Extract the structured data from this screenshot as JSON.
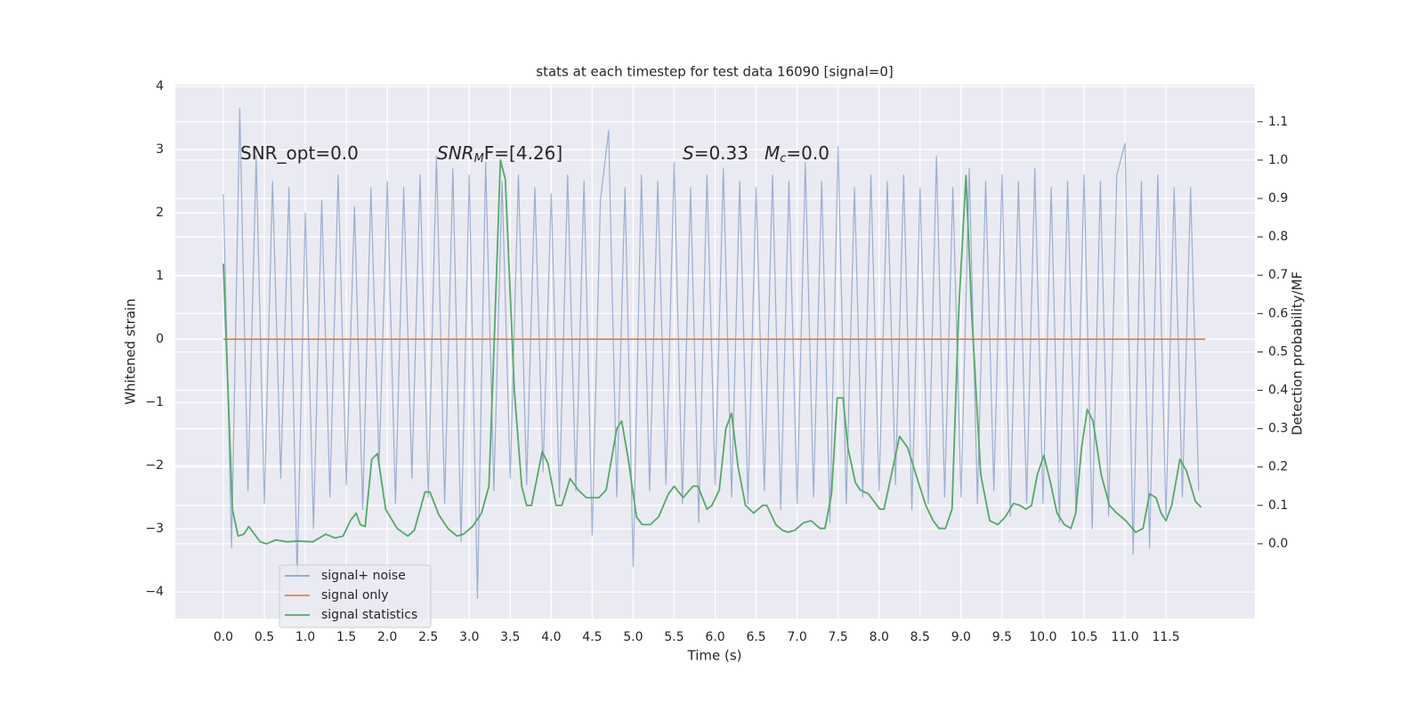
{
  "chart_data": {
    "type": "line",
    "title": "stats at each timestep for test data 16090 [signal=0]",
    "x_label": "Time (s)",
    "y_label": "Whitened strain",
    "y2_label": "Detection probability/MF",
    "annotations": [
      [
        "SNR_opt=0.0"
      ],
      [
        "SNR",
        "M",
        "F=[4.26]"
      ],
      [
        "S",
        "=0.33"
      ],
      [
        "M",
        "c",
        "=0.0"
      ]
    ],
    "xlim": [
      -0.586,
      12.585
    ],
    "ylim": [
      -4.42,
      4.03
    ],
    "y2lim": [
      -0.195,
      1.197
    ],
    "xticks": [
      {
        "value": 0,
        "label": "0.0"
      },
      0.5,
      {
        "value": 1,
        "label": "1.0"
      },
      1.5,
      {
        "value": 2,
        "label": "2.0"
      },
      2.5,
      {
        "value": 3,
        "label": "3.0"
      },
      3.5,
      {
        "value": 4,
        "label": "4.0"
      },
      4.5,
      {
        "value": 5,
        "label": "5.0"
      },
      5.5,
      {
        "value": 6,
        "label": "6.0"
      },
      6.5,
      {
        "value": 7,
        "label": "7.0"
      },
      7.5,
      {
        "value": 8,
        "label": "8.0"
      },
      8.5,
      {
        "value": 9,
        "label": "9.0"
      },
      9.5,
      {
        "value": 10,
        "label": "10.0"
      },
      10.5,
      {
        "value": 11,
        "label": "11.0"
      },
      11.5
    ],
    "yticks": [
      {
        "value": -4,
        "label": "−4"
      },
      {
        "value": -3,
        "label": "−3"
      },
      {
        "value": -2,
        "label": "−2"
      },
      {
        "value": -1,
        "label": "−1"
      },
      0,
      1,
      2,
      3,
      4
    ],
    "y2ticks": [
      {
        "value": 0,
        "label": "0.0"
      },
      0.1,
      0.2,
      0.3,
      0.4,
      0.5,
      0.6,
      0.7,
      0.8,
      0.9,
      {
        "value": 1,
        "label": "1.0"
      },
      1.1
    ],
    "grid": true,
    "legend": "lower left",
    "series": [
      {
        "name": "signal+ noise",
        "color": "#4c72b0",
        "x": [
          0,
          0.1,
          0.2,
          0.3,
          0.4,
          0.5,
          0.6,
          0.7,
          0.8,
          0.9,
          1,
          1.1,
          1.2,
          1.3,
          1.4,
          1.5,
          1.6,
          1.7,
          1.8,
          1.9,
          2,
          2.1,
          2.2,
          2.3,
          2.4,
          2.5,
          2.6,
          2.7,
          2.8,
          2.9,
          3,
          3.1,
          3.2,
          3.3,
          3.4,
          3.5,
          3.6,
          3.7,
          3.8,
          3.9,
          4,
          4.1,
          4.2,
          4.3,
          4.4,
          4.5,
          4.6,
          4.7,
          4.8,
          4.9,
          5,
          5.1,
          5.2,
          5.3,
          5.4,
          5.5,
          5.6,
          5.7,
          5.8,
          5.9,
          6,
          6.1,
          6.2,
          6.3,
          6.4,
          6.5,
          6.6,
          6.7,
          6.8,
          6.9,
          7,
          7.1,
          7.2,
          7.3,
          7.4,
          7.5,
          7.6,
          7.7,
          7.8,
          7.9,
          8,
          8.1,
          8.2,
          8.3,
          8.4,
          8.5,
          8.6,
          8.7,
          8.8,
          8.9,
          9,
          9.1,
          9.2,
          9.3,
          9.4,
          9.5,
          9.6,
          9.7,
          9.8,
          9.9,
          10,
          10.1,
          10.2,
          10.3,
          10.4,
          10.5,
          10.6,
          10.7,
          10.8,
          10.9,
          11,
          11.1,
          11.2,
          11.3,
          11.4,
          11.5,
          11.6,
          11.7,
          11.8,
          11.9
        ],
        "values": [
          2.3,
          -3.3,
          3.65,
          -2.4,
          2.9,
          -2.6,
          2.5,
          -2.2,
          2.4,
          -3.75,
          2.0,
          -3.0,
          2.2,
          -2.5,
          2.6,
          -2.3,
          2.1,
          -2.7,
          2.4,
          -2.0,
          2.5,
          -2.6,
          2.4,
          -2.2,
          2.6,
          -2.5,
          2.9,
          -2.6,
          2.7,
          -3.2,
          2.6,
          -4.1,
          2.8,
          -2.4,
          2.5,
          -2.2,
          2.6,
          -2.3,
          2.4,
          -2.1,
          2.3,
          -2.5,
          2.6,
          -2.4,
          2.5,
          -3.1,
          2.2,
          3.3,
          -2.5,
          2.4,
          -3.6,
          2.6,
          -2.4,
          2.5,
          -2.3,
          2.8,
          -2.6,
          2.4,
          -2.9,
          2.6,
          -2.3,
          2.7,
          -2.5,
          2.5,
          -2.6,
          2.4,
          -2.4,
          2.6,
          -2.7,
          2.5,
          -2.6,
          2.8,
          -2.5,
          2.5,
          -2.9,
          3.05,
          -2.6,
          2.4,
          -2.5,
          2.6,
          -2.4,
          2.5,
          -2.3,
          2.6,
          -2.7,
          2.4,
          -2.6,
          2.9,
          -2.5,
          2.4,
          -2.5,
          2.7,
          -2.6,
          2.5,
          -2.4,
          2.6,
          -2.8,
          2.5,
          -2.6,
          2.7,
          -2.6,
          2.4,
          -2.9,
          2.5,
          -2.7,
          2.6,
          -3.0,
          2.5,
          -2.8,
          2.6,
          3.1,
          -3.4,
          2.5,
          -3.3,
          2.6,
          -2.8,
          2.4,
          -2.5,
          2.4,
          -2.4
        ]
      },
      {
        "name": "signal only",
        "color": "#dd8452",
        "x": [
          0,
          11.98
        ],
        "values": [
          0,
          0
        ]
      },
      {
        "name": "signal statistics",
        "color": "#55a868",
        "axis": "y2",
        "x": [
          0,
          0.11,
          0.18,
          0.25,
          0.31,
          0.45,
          0.53,
          0.64,
          0.77,
          0.91,
          1.09,
          1.25,
          1.36,
          1.46,
          1.55,
          1.62,
          1.67,
          1.73,
          1.81,
          1.88,
          1.98,
          2.12,
          2.25,
          2.33,
          2.46,
          2.52,
          2.63,
          2.74,
          2.85,
          2.93,
          3.04,
          3.15,
          3.24,
          3.3,
          3.38,
          3.44,
          3.55,
          3.64,
          3.7,
          3.76,
          3.89,
          3.96,
          4.06,
          4.13,
          4.23,
          4.33,
          4.43,
          4.58,
          4.67,
          4.8,
          4.86,
          4.94,
          5.04,
          5.11,
          5.21,
          5.31,
          5.43,
          5.5,
          5.61,
          5.73,
          5.79,
          5.9,
          5.96,
          6.05,
          6.13,
          6.2,
          6.28,
          6.37,
          6.47,
          6.58,
          6.63,
          6.74,
          6.82,
          6.89,
          6.97,
          7.08,
          7.17,
          7.28,
          7.34,
          7.42,
          7.49,
          7.56,
          7.62,
          7.71,
          7.77,
          7.87,
          8.01,
          8.06,
          8.17,
          8.25,
          8.35,
          8.45,
          8.57,
          8.66,
          8.73,
          8.81,
          8.89,
          8.97,
          9.06,
          9.13,
          9.24,
          9.35,
          9.45,
          9.54,
          9.64,
          9.72,
          9.79,
          9.86,
          9.93,
          10.01,
          10.09,
          10.17,
          10.26,
          10.34,
          10.4,
          10.47,
          10.54,
          10.61,
          10.71,
          10.81,
          10.9,
          11.01,
          11.13,
          11.22,
          11.3,
          11.38,
          11.44,
          11.5,
          11.57,
          11.67,
          11.75,
          11.86,
          11.93
        ],
        "values": [
          0.73,
          0.09,
          0.02,
          0.025,
          0.045,
          0.005,
          0,
          0.01,
          0.005,
          0.007,
          0.005,
          0.025,
          0.015,
          0.02,
          0.06,
          0.08,
          0.05,
          0.045,
          0.22,
          0.235,
          0.09,
          0.04,
          0.02,
          0.035,
          0.135,
          0.135,
          0.075,
          0.04,
          0.02,
          0.025,
          0.045,
          0.08,
          0.15,
          0.5,
          1.0,
          0.95,
          0.4,
          0.15,
          0.1,
          0.1,
          0.24,
          0.21,
          0.1,
          0.1,
          0.17,
          0.14,
          0.12,
          0.12,
          0.14,
          0.3,
          0.32,
          0.22,
          0.07,
          0.05,
          0.05,
          0.07,
          0.13,
          0.15,
          0.12,
          0.15,
          0.15,
          0.09,
          0.1,
          0.14,
          0.3,
          0.34,
          0.2,
          0.1,
          0.08,
          0.1,
          0.1,
          0.05,
          0.035,
          0.03,
          0.035,
          0.055,
          0.06,
          0.04,
          0.04,
          0.13,
          0.38,
          0.38,
          0.25,
          0.16,
          0.14,
          0.13,
          0.09,
          0.09,
          0.2,
          0.28,
          0.25,
          0.18,
          0.1,
          0.06,
          0.04,
          0.04,
          0.09,
          0.6,
          0.96,
          0.6,
          0.18,
          0.06,
          0.05,
          0.07,
          0.105,
          0.1,
          0.09,
          0.1,
          0.18,
          0.23,
          0.16,
          0.08,
          0.05,
          0.04,
          0.08,
          0.25,
          0.35,
          0.32,
          0.18,
          0.1,
          0.08,
          0.06,
          0.03,
          0.04,
          0.13,
          0.12,
          0.08,
          0.06,
          0.1,
          0.22,
          0.19,
          0.11,
          0.095
        ]
      }
    ]
  }
}
